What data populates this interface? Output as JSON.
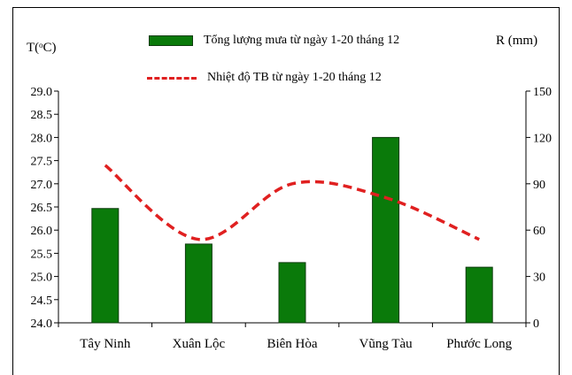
{
  "colors": {
    "bar_fill": "#0a7a0a",
    "bar_stroke": "#0f3d0f",
    "line": "#e02020",
    "axis": "#000000"
  },
  "legend": {
    "bar_label": "Tổng lượng mưa từ ngày 1-20 tháng 12",
    "line_label": "Nhiệt độ TB từ ngày 1-20 tháng 12"
  },
  "chart_data": {
    "type": "bar",
    "categories": [
      "Tây Ninh",
      "Xuân Lộc",
      "Biên Hòa",
      "Vũng Tàu",
      "Phước Long"
    ],
    "series": [
      {
        "name": "Tổng lượng mưa từ ngày 1-20 tháng 12",
        "type": "bar",
        "axis": "right",
        "values": [
          74,
          51,
          39,
          120,
          36
        ]
      },
      {
        "name": "Nhiệt độ TB từ ngày 1-20 tháng 12",
        "type": "line",
        "style": "dashed",
        "axis": "left",
        "values": [
          27.4,
          25.8,
          27.0,
          26.7,
          25.8
        ]
      }
    ],
    "ylabel_left": "T(ᵒC)",
    "ylabel_right": "R (mm)",
    "ylim_left": [
      24.0,
      29.0
    ],
    "ylim_right": [
      0,
      150
    ],
    "yticks_left": [
      "24.0",
      "24.5",
      "25.0",
      "25.5",
      "26.0",
      "26.5",
      "27.0",
      "27.5",
      "28.0",
      "28.5",
      "29.0"
    ],
    "yticks_right": [
      "0",
      "30",
      "60",
      "90",
      "120",
      "150"
    ],
    "grid": false,
    "legend_position": "top"
  }
}
